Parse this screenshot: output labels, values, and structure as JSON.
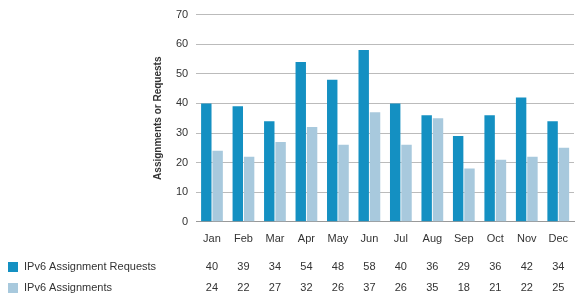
{
  "chart_data": {
    "type": "bar",
    "y_label": "Assignments or Requests",
    "categories": [
      "Jan",
      "Feb",
      "Mar",
      "Apr",
      "May",
      "Jun",
      "Jul",
      "Aug",
      "Sep",
      "Oct",
      "Nov",
      "Dec"
    ],
    "series": [
      {
        "name": "IPv6 Assignment Requests",
        "color": "#1490c2",
        "values": [
          40,
          39,
          34,
          54,
          48,
          58,
          40,
          36,
          29,
          36,
          42,
          34
        ]
      },
      {
        "name": "IPv6 Assignments",
        "color": "#a8c9dd",
        "values": [
          24,
          22,
          27,
          32,
          26,
          37,
          26,
          35,
          18,
          21,
          22,
          25
        ]
      }
    ],
    "ylim": [
      0,
      70
    ],
    "yticks": [
      0,
      10,
      20,
      30,
      40,
      50,
      60,
      70
    ],
    "grid": true,
    "legend": "bottom"
  }
}
